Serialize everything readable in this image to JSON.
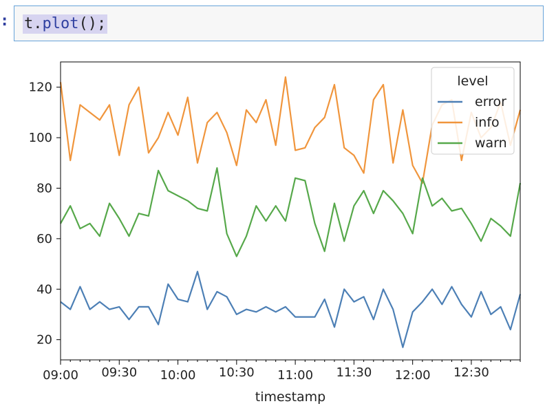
{
  "cell": {
    "prompt_symbol": ":",
    "code_obj": "t",
    "code_dot": ".",
    "code_fn": "plot",
    "code_rest": "();"
  },
  "chart_data": {
    "type": "line",
    "xlabel": "timestamp",
    "ylabel": "",
    "x_start": "09:00",
    "x_step_minutes": 5,
    "xticks": [
      "09:00",
      "09:30",
      "10:00",
      "10:30",
      "11:00",
      "11:30",
      "12:00",
      "12:30"
    ],
    "yticks": [
      20,
      40,
      60,
      80,
      100,
      120
    ],
    "ylim": [
      12,
      130
    ],
    "legend": {
      "title": "level",
      "placement": "top-right"
    },
    "grid": false,
    "series": [
      {
        "name": "error",
        "color": "#4c7fb5",
        "values": [
          35,
          32,
          41,
          32,
          35,
          32,
          33,
          28,
          33,
          33,
          26,
          42,
          36,
          35,
          47,
          32,
          39,
          37,
          30,
          32,
          31,
          33,
          31,
          33,
          29,
          29,
          29,
          36,
          25,
          40,
          35,
          37,
          28,
          40,
          32,
          17,
          31,
          35,
          40,
          34,
          41,
          34,
          29,
          39,
          30,
          33,
          24,
          38
        ]
      },
      {
        "name": "info",
        "color": "#f0953c",
        "values": [
          122,
          91,
          113,
          110,
          107,
          113,
          93,
          113,
          120,
          94,
          100,
          110,
          101,
          116,
          90,
          106,
          110,
          102,
          89,
          111,
          106,
          115,
          97,
          124,
          95,
          96,
          104,
          108,
          121,
          96,
          93,
          86,
          115,
          121,
          90,
          111,
          89,
          82,
          105,
          113,
          115,
          91,
          110,
          100,
          104,
          114,
          97,
          111
        ]
      },
      {
        "name": "warn",
        "color": "#56a84a",
        "values": [
          66,
          73,
          64,
          66,
          61,
          74,
          68,
          61,
          70,
          69,
          87,
          79,
          77,
          75,
          72,
          71,
          88,
          62,
          53,
          61,
          73,
          67,
          73,
          67,
          84,
          83,
          66,
          55,
          74,
          59,
          73,
          79,
          70,
          79,
          75,
          70,
          62,
          84,
          73,
          76,
          71,
          72,
          66,
          59,
          68,
          65,
          61,
          82
        ]
      }
    ]
  }
}
